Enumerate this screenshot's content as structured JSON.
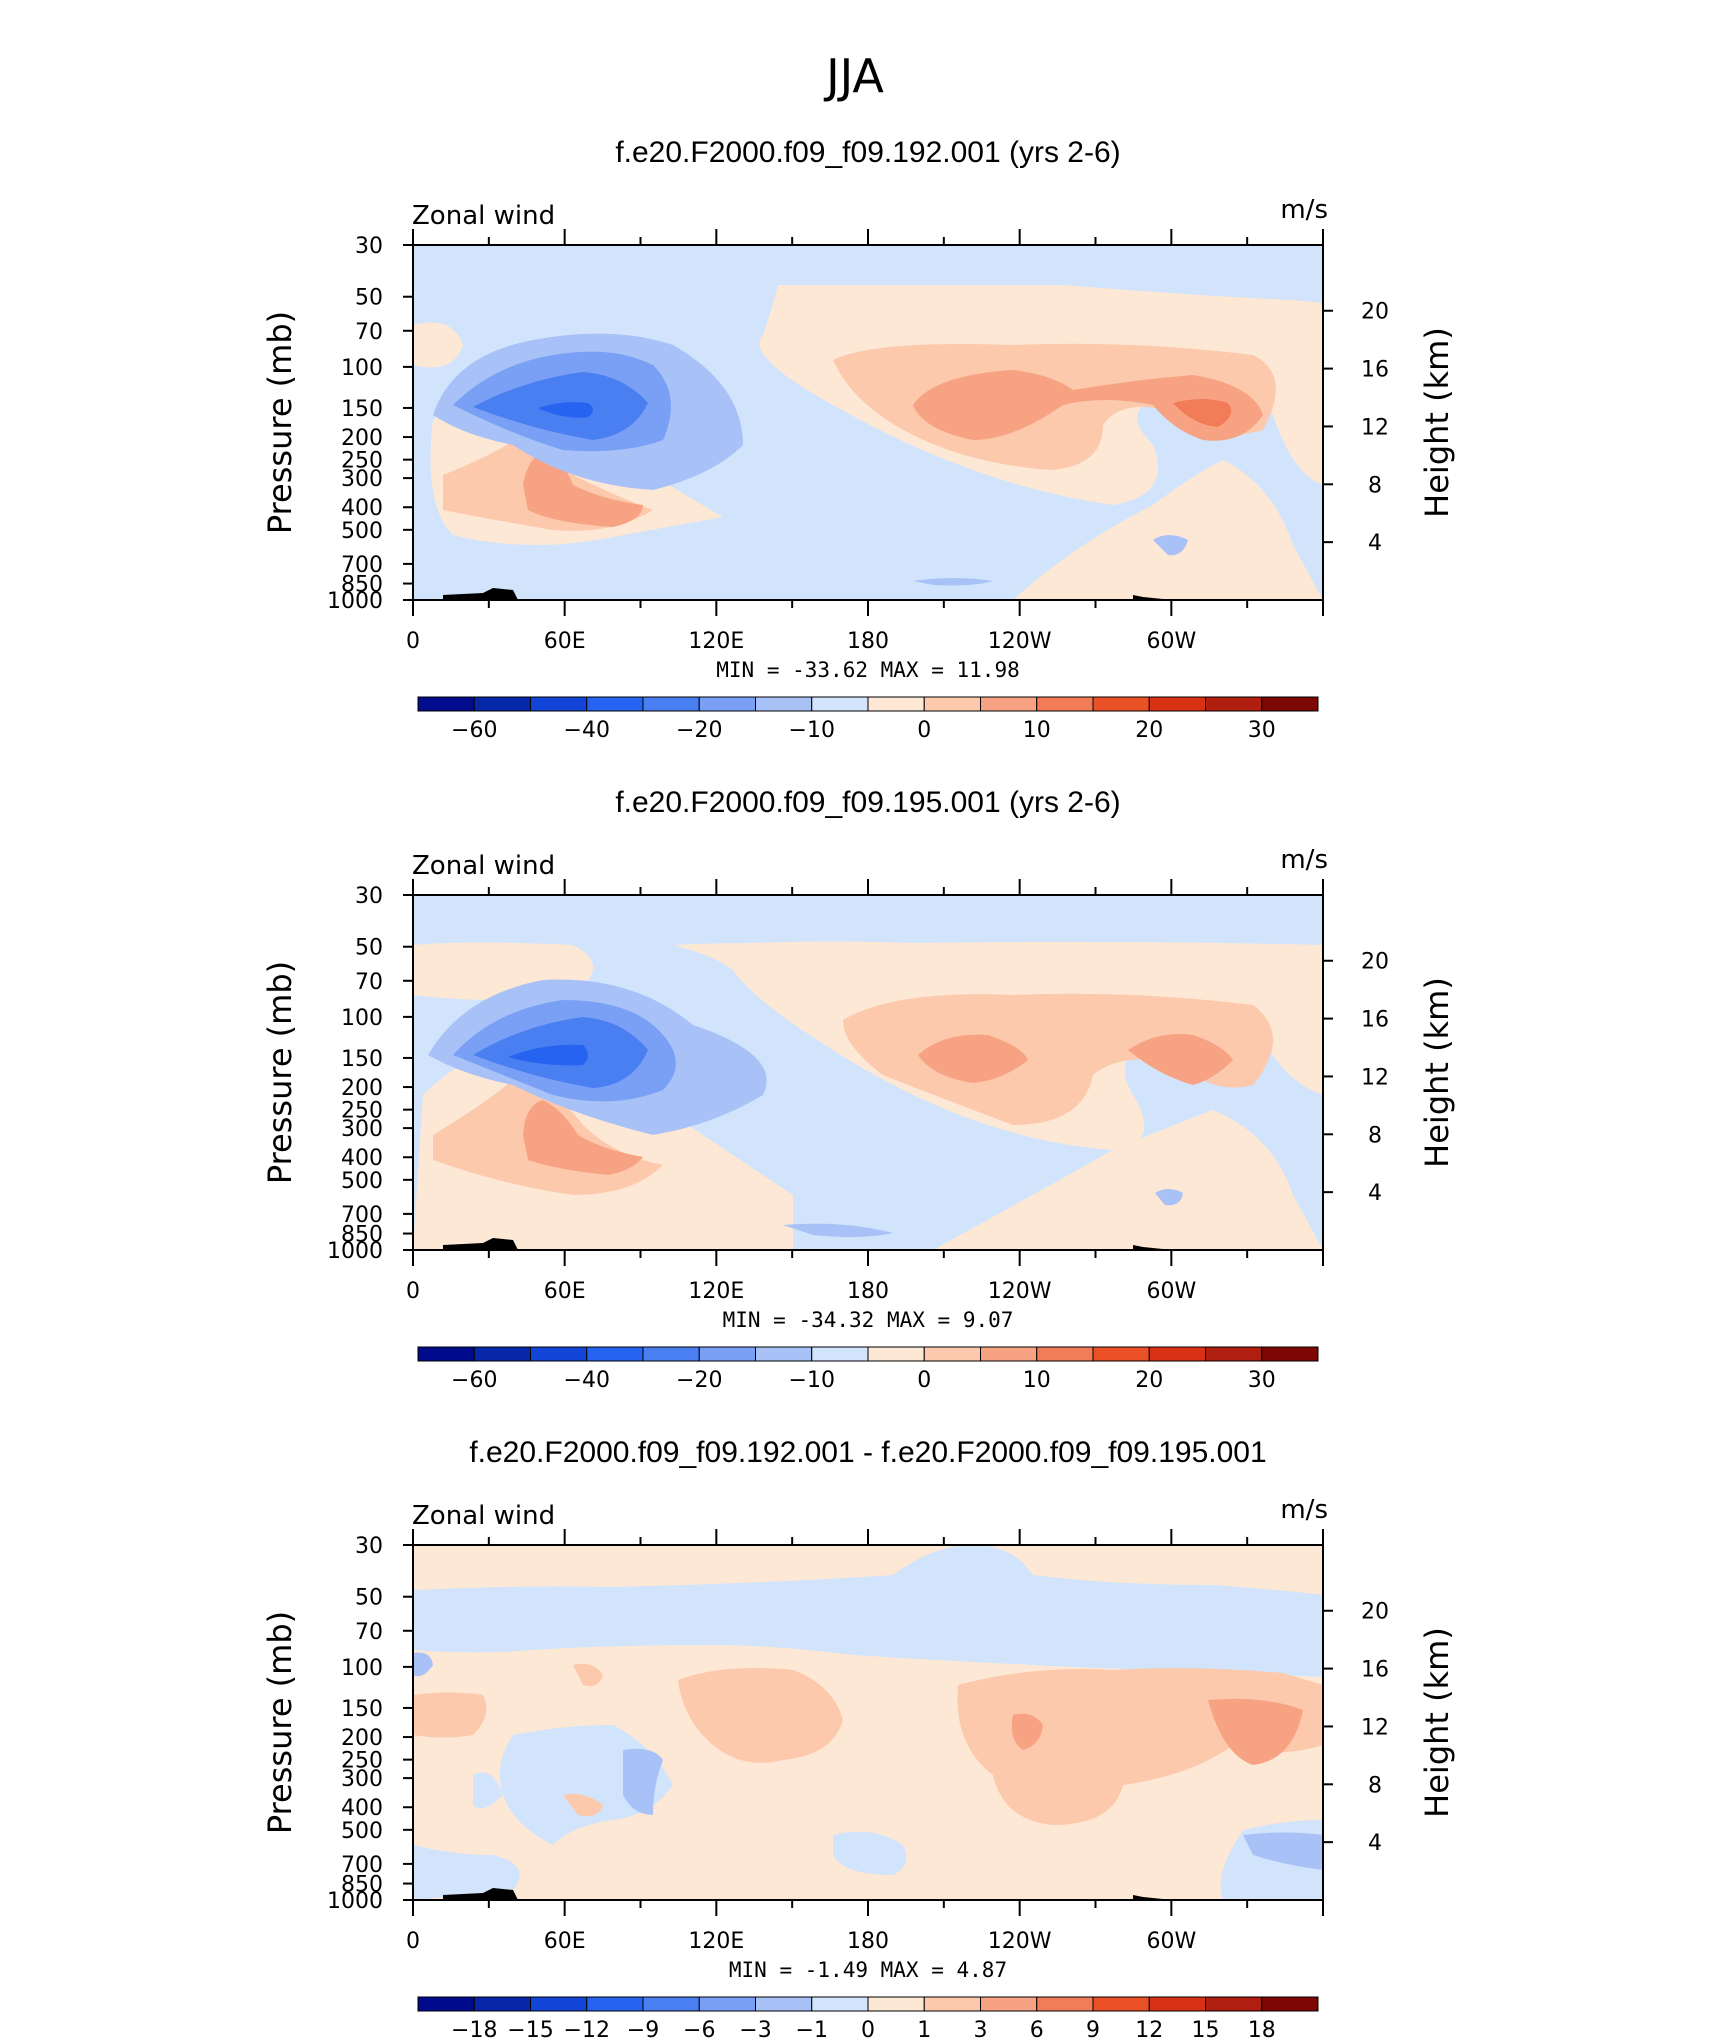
{
  "figure_title": "JJA",
  "chart_data": [
    {
      "type": "heatmap",
      "title": "f.e20.F2000.f09_f09.192.001 (yrs 2-6)",
      "variable_label": "Zonal wind",
      "units_label": "m/s",
      "ylabel": "Pressure (mb)",
      "ylabel_right": "Height (km)",
      "x_ticks": [
        "0",
        "60E",
        "120E",
        "180",
        "120W",
        "60W"
      ],
      "y_ticks": [
        "30",
        "50",
        "70",
        "100",
        "150",
        "200",
        "250",
        "300",
        "400",
        "500",
        "700",
        "850",
        "1000"
      ],
      "y_right_ticks": [
        "20",
        "16",
        "12",
        "8",
        "4"
      ],
      "min_label": "MIN",
      "min_value": "-33.62",
      "max_label": "MAX",
      "max_value": "11.98",
      "colorbar_labels": [
        "-60",
        "-40",
        "-20",
        "-10",
        "0",
        "10",
        "20",
        "30"
      ],
      "background_level": "-10",
      "features": [
        {
          "level": "-20",
          "lon_center": 65,
          "p_center": 150,
          "value_min": -33.62
        },
        {
          "level": "0",
          "lon_center": 240,
          "p_center": 150,
          "value_max": 11.98
        },
        {
          "level": "0",
          "lon_center": 55,
          "p_center": 600
        }
      ]
    },
    {
      "type": "heatmap",
      "title": "f.e20.F2000.f09_f09.195.001 (yrs 2-6)",
      "variable_label": "Zonal wind",
      "units_label": "m/s",
      "ylabel": "Pressure (mb)",
      "ylabel_right": "Height (km)",
      "x_ticks": [
        "0",
        "60E",
        "120E",
        "180",
        "120W",
        "60W"
      ],
      "y_ticks": [
        "30",
        "50",
        "70",
        "100",
        "150",
        "200",
        "250",
        "300",
        "400",
        "500",
        "700",
        "850",
        "1000"
      ],
      "y_right_ticks": [
        "20",
        "16",
        "12",
        "8",
        "4"
      ],
      "min_label": "MIN",
      "min_value": "-34.32",
      "max_label": "MAX",
      "max_value": "9.07",
      "colorbar_labels": [
        "-60",
        "-40",
        "-20",
        "-10",
        "0",
        "10",
        "20",
        "30"
      ],
      "background_level": "-10",
      "features": [
        {
          "level": "-20",
          "lon_center": 65,
          "p_center": 150,
          "value_min": -34.32
        },
        {
          "level": "0",
          "lon_center": 240,
          "p_center": 150,
          "value_max": 9.07
        },
        {
          "level": "0",
          "lon_center": 55,
          "p_center": 600
        }
      ]
    },
    {
      "type": "heatmap",
      "title": "f.e20.F2000.f09_f09.192.001 - f.e20.F2000.f09_f09.195.001",
      "variable_label": "Zonal wind",
      "units_label": "m/s",
      "ylabel": "Pressure (mb)",
      "ylabel_right": "Height (km)",
      "x_ticks": [
        "0",
        "60E",
        "120E",
        "180",
        "120W",
        "60W"
      ],
      "y_ticks": [
        "30",
        "50",
        "70",
        "100",
        "150",
        "200",
        "250",
        "300",
        "400",
        "500",
        "700",
        "850",
        "1000"
      ],
      "y_right_ticks": [
        "20",
        "16",
        "12",
        "8",
        "4"
      ],
      "min_label": "MIN",
      "min_value": "-1.49",
      "max_label": "MAX",
      "max_value": "4.87",
      "colorbar_labels": [
        "-18",
        "-15",
        "-12",
        "-9",
        "-6",
        "-3",
        "-1",
        "0",
        "1",
        "3",
        "6",
        "9",
        "12",
        "15",
        "18"
      ],
      "background_level": "0",
      "features": [
        {
          "level": "-1",
          "lon_center": 180,
          "p_center": 60
        },
        {
          "level": "1",
          "lon_center": 280,
          "p_center": 250,
          "value_max": 4.87
        },
        {
          "level": "1",
          "lon_center": 130,
          "p_center": 200
        }
      ]
    }
  ],
  "colors": {
    "cb1": [
      "#000c8c",
      "#0628a8",
      "#1244d8",
      "#2563f0",
      "#4a7ff2",
      "#7aa0f5",
      "#a8c2f7",
      "#d2e4fb",
      "#fde8d5",
      "#fcc9ac",
      "#f7a383",
      "#f27b58",
      "#eb5126",
      "#d83116",
      "#b01e10",
      "#7d0704"
    ],
    "cb3": [
      "#000c8c",
      "#0628a8",
      "#1244d8",
      "#2563f0",
      "#4a7ff2",
      "#7aa0f5",
      "#a8c2f7",
      "#d2e4fb",
      "#fde8d5",
      "#fcc9ac",
      "#f7a383",
      "#f27b58",
      "#eb5126",
      "#d83116",
      "#b01e10",
      "#7d0704"
    ]
  }
}
